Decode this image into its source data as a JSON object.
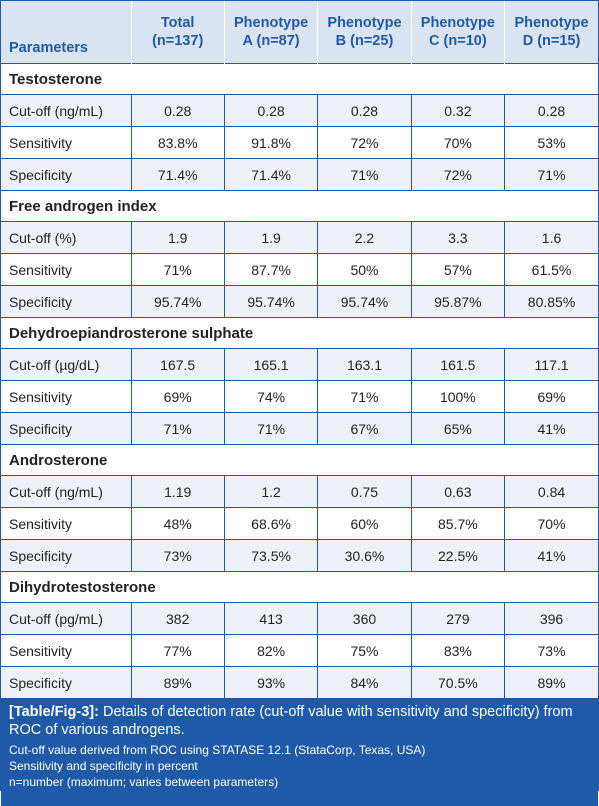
{
  "header": {
    "col0": "Parameters",
    "cols": [
      {
        "line1": "Total",
        "line2": "(n=137)"
      },
      {
        "line1": "Phenotype",
        "line2": "A (n=87)"
      },
      {
        "line1": "Phenotype",
        "line2": "B (n=25)"
      },
      {
        "line1": "Phenotype",
        "line2": "C (n=10)"
      },
      {
        "line1": "Phenotype",
        "line2": "D (n=15)"
      }
    ]
  },
  "sections": [
    {
      "title": "Testosterone",
      "rows": [
        {
          "label": "Cut-off (ng/mL)",
          "values": [
            "0.28",
            "0.28",
            "0.28",
            "0.32",
            "0.28"
          ]
        },
        {
          "label": "Sensitivity",
          "values": [
            "83.8%",
            "91.8%",
            "72%",
            "70%",
            "53%"
          ]
        },
        {
          "label": "Specificity",
          "values": [
            "71.4%",
            "71.4%",
            "71%",
            "72%",
            "71%"
          ]
        }
      ]
    },
    {
      "title": "Free androgen index",
      "rows": [
        {
          "label": "Cut-off (%)",
          "values": [
            "1.9",
            "1.9",
            "2.2",
            "3.3",
            "1.6"
          ]
        },
        {
          "label": "Sensitivity",
          "values": [
            "71%",
            "87.7%",
            "50%",
            "57%",
            "61.5%"
          ]
        },
        {
          "label": "Specificity",
          "values": [
            "95.74%",
            "95.74%",
            "95.74%",
            "95.87%",
            "80.85%"
          ]
        }
      ]
    },
    {
      "title": "Dehydroepiandrosterone sulphate",
      "rows": [
        {
          "label": "Cut-off (µg/dL)",
          "values": [
            "167.5",
            "165.1",
            "163.1",
            "161.5",
            "117.1"
          ]
        },
        {
          "label": "Sensitivity",
          "values": [
            "69%",
            "74%",
            "71%",
            "100%",
            "69%"
          ]
        },
        {
          "label": "Specificity",
          "values": [
            "71%",
            "71%",
            "67%",
            "65%",
            "41%"
          ]
        }
      ]
    },
    {
      "title": "Androsterone",
      "rows": [
        {
          "label": "Cut-off (ng/mL)",
          "values": [
            "1.19",
            "1.2",
            "0.75",
            "0.63",
            "0.84"
          ]
        },
        {
          "label": "Sensitivity",
          "values": [
            "48%",
            "68.6%",
            "60%",
            "85.7%",
            "70%"
          ]
        },
        {
          "label": "Specificity",
          "values": [
            "73%",
            "73.5%",
            "30.6%",
            "22.5%",
            "41%"
          ]
        }
      ]
    },
    {
      "title": "Dihydrotestosterone",
      "rows": [
        {
          "label": "Cut-off (pg/mL)",
          "values": [
            "382",
            "413",
            "360",
            "279",
            "396"
          ]
        },
        {
          "label": "Sensitivity",
          "values": [
            "77%",
            "82%",
            "75%",
            "83%",
            "73%"
          ]
        },
        {
          "label": "Specificity",
          "values": [
            "89%",
            "93%",
            "84%",
            "70.5%",
            "89%"
          ]
        }
      ]
    }
  ],
  "caption": {
    "label": "[Table/Fig-3]:",
    "text": " Details of detection rate (cut-off value with sensitivity and specificity) from ROC of various androgens.",
    "notes": [
      "Cut-off value derived from ROC using STATASE 12.1 (StataCorp, Texas, USA)",
      "Sensitivity and specificity in percent",
      "n=number (maximum; varies between parameters)"
    ]
  }
}
